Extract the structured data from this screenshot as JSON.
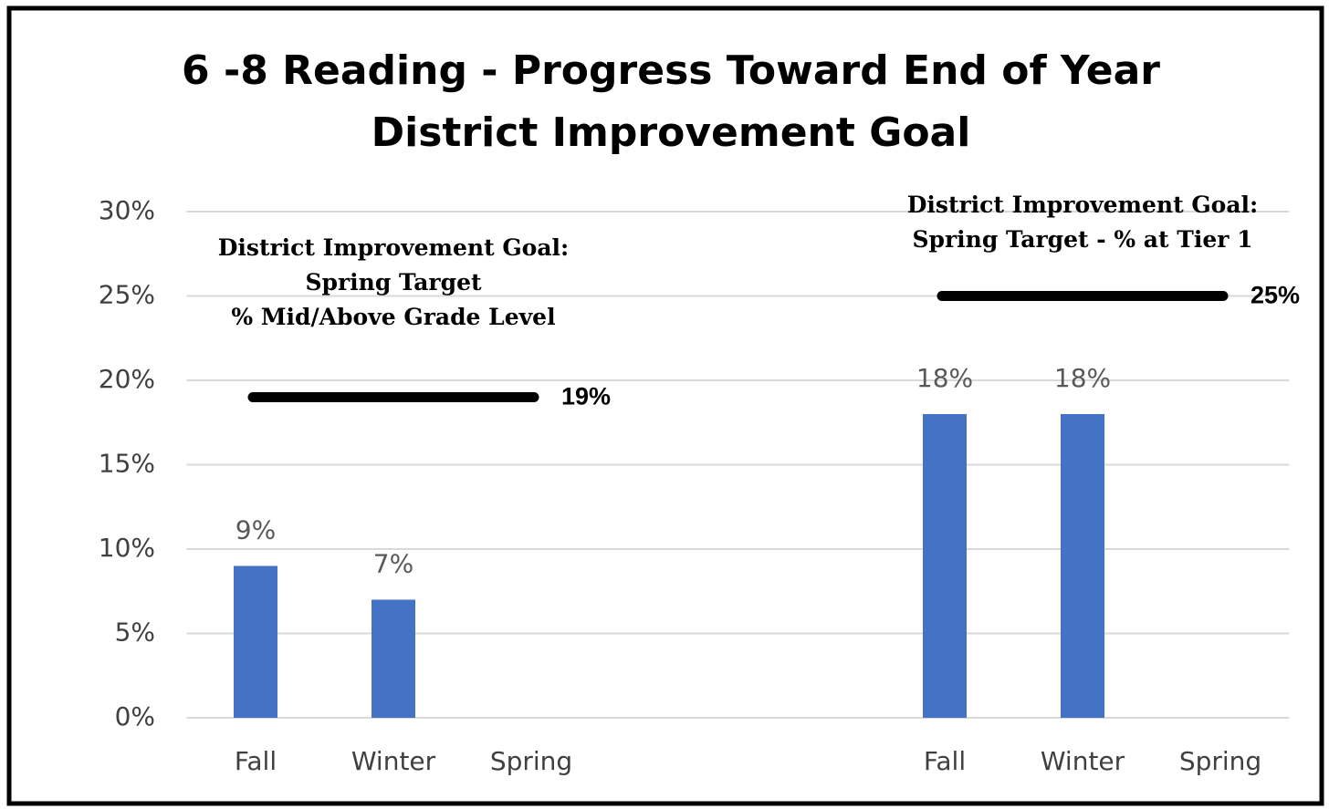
{
  "chart_data": {
    "type": "bar",
    "title": [
      "6 -8 Reading - Progress Toward End of Year",
      "District Improvement Goal"
    ],
    "categories": [
      "Fall",
      "Winter",
      "Spring",
      null,
      null,
      "Fall",
      "Winter",
      "Spring"
    ],
    "values": [
      9,
      7,
      null,
      null,
      null,
      18,
      18,
      null
    ],
    "value_labels": [
      "9%",
      "7%",
      null,
      null,
      null,
      "18%",
      "18%",
      null
    ],
    "color": "#4472c4",
    "ylim": [
      0,
      30
    ],
    "yticks": [
      {
        "value": 0,
        "label": "0%"
      },
      {
        "value": 5,
        "label": "5%"
      },
      {
        "value": 10,
        "label": "10%"
      },
      {
        "value": 15,
        "label": "15%"
      },
      {
        "value": 20,
        "label": "20%"
      },
      {
        "value": 25,
        "label": "25%"
      },
      {
        "value": 30,
        "label": "30%"
      }
    ],
    "grid": true,
    "targets": [
      {
        "text": [
          "District Improvement Goal:",
          "Spring Target",
          "% Mid/Above Grade Level"
        ],
        "value": 19,
        "label": "19%",
        "color": "#000000"
      },
      {
        "text": [
          "District Improvement Goal:",
          "Spring Target - % at Tier 1"
        ],
        "value": 25,
        "label": "25%",
        "color": "#000000"
      }
    ]
  }
}
